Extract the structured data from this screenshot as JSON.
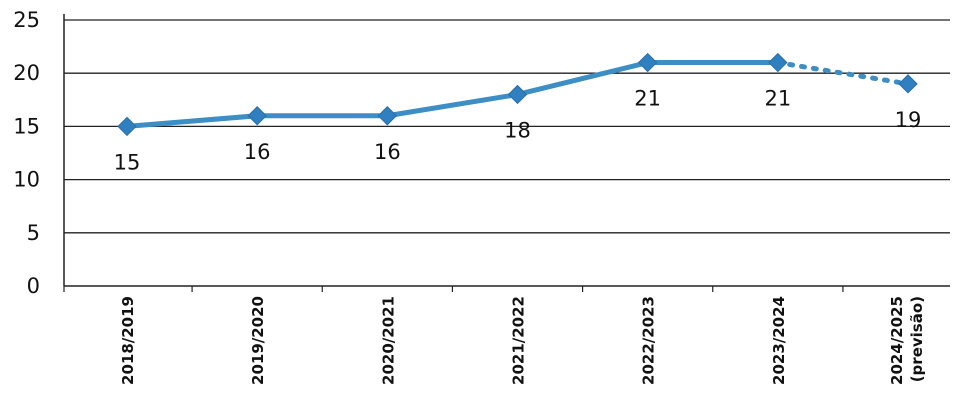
{
  "chart_data": {
    "type": "line",
    "categories": [
      "2018/2019",
      "2019/2020",
      "2020/2021",
      "2021/2022",
      "2022/2023",
      "2023/2024",
      "2024/2025"
    ],
    "category_sublabels": [
      "",
      "",
      "",
      "",
      "",
      "",
      "(previsão)"
    ],
    "values": [
      15,
      16,
      16,
      18,
      21,
      21,
      19
    ],
    "data_labels": [
      "15",
      "16",
      "16",
      "18",
      "21",
      "21",
      "19"
    ],
    "forecast_from_index": 5,
    "ylim": [
      0,
      25
    ],
    "yticks": [
      0,
      5,
      10,
      15,
      20,
      25
    ],
    "title": "",
    "xlabel": "",
    "ylabel": "",
    "grid": true,
    "colors": {
      "line": "#3d8ec4",
      "marker": "#2f7fc1",
      "grid": "#222222"
    }
  }
}
